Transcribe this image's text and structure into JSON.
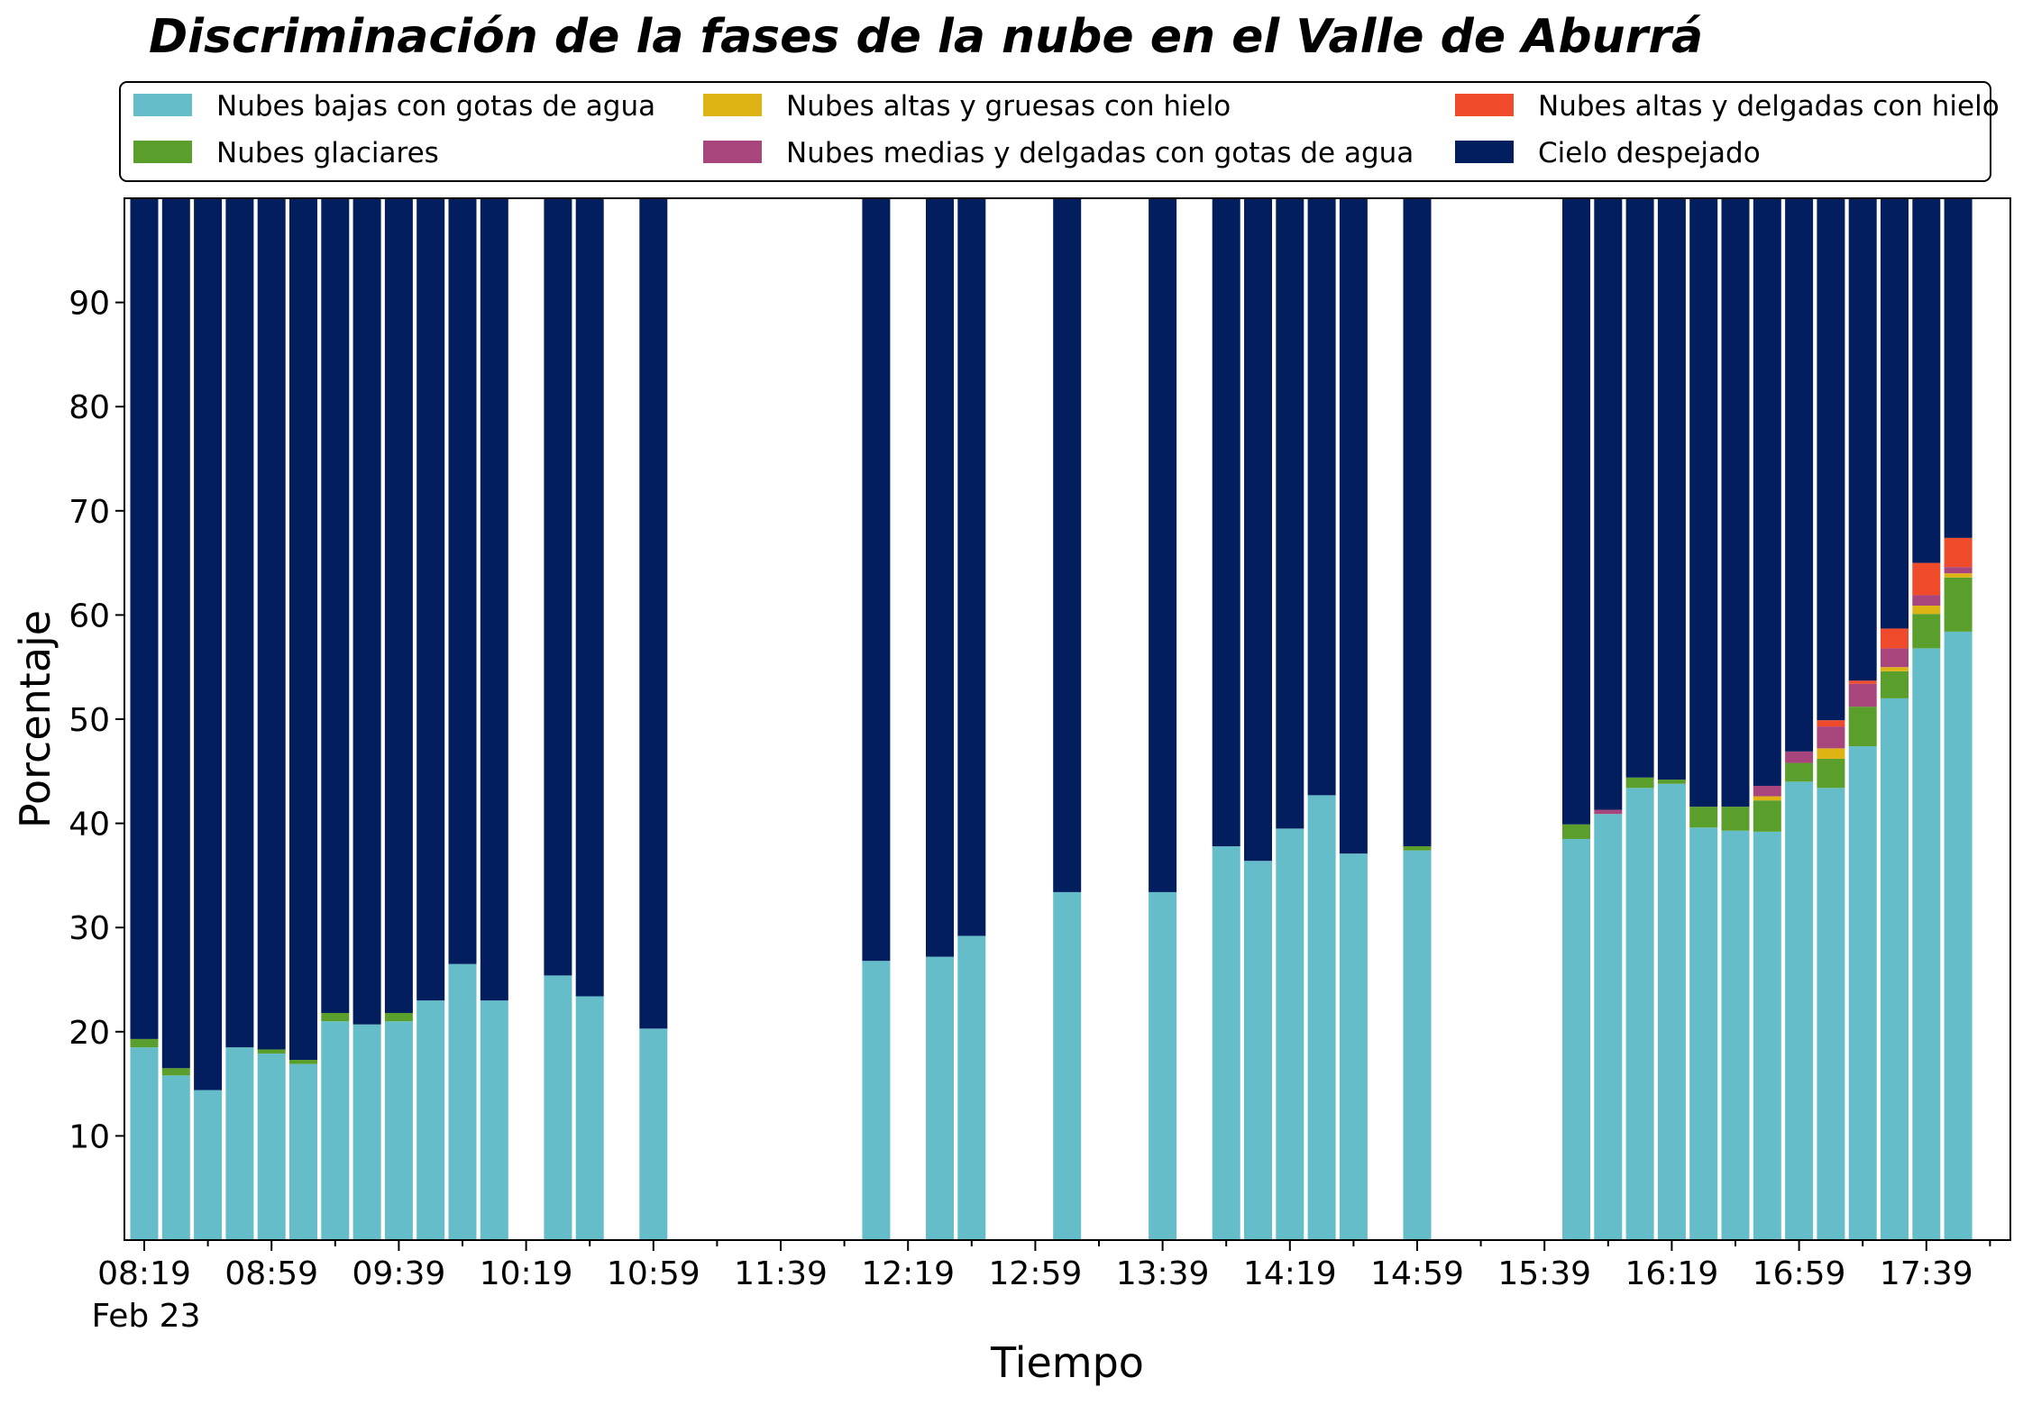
{
  "chart_data": {
    "type": "bar",
    "stacked": true,
    "title": "Discriminación de la fases de la nube en el Valle de Aburrá",
    "xlabel": "Tiempo",
    "ylabel": "Porcentaje",
    "ylim": [
      0,
      100
    ],
    "yticks": [
      10,
      20,
      30,
      40,
      50,
      60,
      70,
      80,
      90
    ],
    "x_tick_labels": [
      "08:19",
      "08:59",
      "09:39",
      "10:19",
      "10:59",
      "11:39",
      "12:19",
      "12:59",
      "13:39",
      "14:19",
      "14:59",
      "15:39",
      "16:19",
      "16:59",
      "17:39"
    ],
    "x_date_label": "Feb 23",
    "slot_minutes": 10,
    "n_slots": 59,
    "legend_position": "top",
    "series": [
      {
        "name": "Nubes bajas con gotas de agua",
        "color": "#65bdc9"
      },
      {
        "name": "Nubes glaciares",
        "color": "#5a9e2c"
      },
      {
        "name": "Nubes altas y gruesas con hielo",
        "color": "#e0b315"
      },
      {
        "name": "Nubes medias y delgadas con gotas de agua",
        "color": "#a8457d"
      },
      {
        "name": "Nubes altas y delgadas con hielo",
        "color": "#ef4b2a"
      },
      {
        "name": "Cielo despejado",
        "color": "#031e5e"
      }
    ],
    "bars": [
      {
        "time": "08:19",
        "values": [
          18.5,
          0.8,
          0,
          0,
          0,
          80.7
        ]
      },
      {
        "time": "08:29",
        "values": [
          15.8,
          0.7,
          0,
          0,
          0,
          83.5
        ]
      },
      {
        "time": "08:39",
        "values": [
          14.4,
          0,
          0,
          0,
          0,
          85.6
        ]
      },
      {
        "time": "08:49",
        "values": [
          18.5,
          0,
          0,
          0,
          0,
          81.5
        ]
      },
      {
        "time": "08:59",
        "values": [
          17.9,
          0.4,
          0,
          0,
          0,
          81.7
        ]
      },
      {
        "time": "09:09",
        "values": [
          16.9,
          0.4,
          0,
          0,
          0,
          82.7
        ]
      },
      {
        "time": "09:19",
        "values": [
          21.0,
          0.8,
          0,
          0,
          0,
          78.2
        ]
      },
      {
        "time": "09:29",
        "values": [
          20.7,
          0,
          0,
          0,
          0,
          79.3
        ]
      },
      {
        "time": "09:39",
        "values": [
          21.0,
          0.8,
          0,
          0,
          0,
          78.2
        ]
      },
      {
        "time": "09:49",
        "values": [
          23.0,
          0,
          0,
          0,
          0,
          77.0
        ]
      },
      {
        "time": "09:59",
        "values": [
          26.5,
          0,
          0,
          0,
          0,
          73.5
        ]
      },
      {
        "time": "10:09",
        "values": [
          23.0,
          0,
          0,
          0,
          0,
          77.0
        ]
      },
      {
        "time": "10:29",
        "values": [
          25.4,
          0,
          0,
          0,
          0,
          74.6
        ]
      },
      {
        "time": "10:39",
        "values": [
          23.4,
          0,
          0,
          0,
          0,
          76.6
        ]
      },
      {
        "time": "10:59",
        "values": [
          20.3,
          0,
          0,
          0,
          0,
          79.7
        ]
      },
      {
        "time": "12:09",
        "values": [
          26.8,
          0,
          0,
          0,
          0,
          73.2
        ]
      },
      {
        "time": "12:29",
        "values": [
          27.2,
          0,
          0,
          0,
          0,
          72.8
        ]
      },
      {
        "time": "12:39",
        "values": [
          29.2,
          0,
          0,
          0,
          0,
          70.8
        ]
      },
      {
        "time": "13:09",
        "values": [
          33.4,
          0,
          0,
          0,
          0,
          66.6
        ]
      },
      {
        "time": "13:39",
        "values": [
          33.4,
          0,
          0,
          0,
          0,
          66.6
        ]
      },
      {
        "time": "13:59",
        "values": [
          37.8,
          0,
          0,
          0,
          0,
          62.2
        ]
      },
      {
        "time": "14:09",
        "values": [
          36.4,
          0,
          0,
          0,
          0,
          63.6
        ]
      },
      {
        "time": "14:19",
        "values": [
          39.5,
          0,
          0,
          0,
          0,
          60.5
        ]
      },
      {
        "time": "14:29",
        "values": [
          42.7,
          0,
          0,
          0,
          0,
          57.3
        ]
      },
      {
        "time": "14:39",
        "values": [
          37.1,
          0,
          0,
          0,
          0,
          62.9
        ]
      },
      {
        "time": "14:59",
        "values": [
          37.4,
          0.4,
          0,
          0,
          0,
          62.2
        ]
      },
      {
        "time": "15:49",
        "values": [
          38.5,
          1.4,
          0,
          0,
          0,
          60.1
        ]
      },
      {
        "time": "15:59",
        "values": [
          40.9,
          0,
          0,
          0.4,
          0,
          58.7
        ]
      },
      {
        "time": "16:09",
        "values": [
          43.4,
          1.0,
          0,
          0,
          0,
          55.6
        ]
      },
      {
        "time": "16:19",
        "values": [
          43.8,
          0.4,
          0,
          0,
          0,
          55.8
        ]
      },
      {
        "time": "16:29",
        "values": [
          39.6,
          2.0,
          0,
          0,
          0,
          58.4
        ]
      },
      {
        "time": "16:39",
        "values": [
          39.3,
          2.3,
          0,
          0,
          0,
          58.4
        ]
      },
      {
        "time": "16:49",
        "values": [
          39.2,
          3.0,
          0.4,
          1.0,
          0,
          56.4
        ]
      },
      {
        "time": "16:59",
        "values": [
          44.0,
          1.8,
          0,
          1.1,
          0,
          53.1
        ]
      },
      {
        "time": "17:09",
        "values": [
          43.4,
          2.8,
          1.0,
          2.1,
          0.6,
          50.1
        ]
      },
      {
        "time": "17:19",
        "values": [
          47.4,
          3.8,
          0,
          2.2,
          0.3,
          46.3
        ]
      },
      {
        "time": "17:29",
        "values": [
          52.0,
          2.6,
          0.4,
          1.8,
          1.9,
          41.3
        ]
      },
      {
        "time": "17:39",
        "values": [
          56.8,
          3.3,
          0.8,
          1.0,
          3.1,
          35.0
        ]
      },
      {
        "time": "17:49",
        "values": [
          58.4,
          5.2,
          0.4,
          0.6,
          2.8,
          32.6
        ]
      }
    ]
  }
}
